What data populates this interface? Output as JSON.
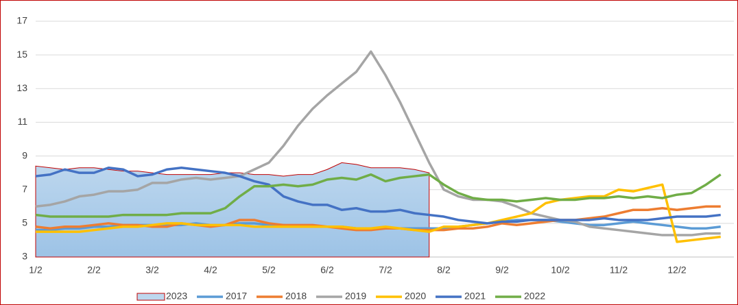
{
  "chart_data": {
    "type": "line",
    "categories": [
      "1/2",
      null,
      null,
      null,
      "2/2",
      null,
      null,
      null,
      "3/2",
      null,
      null,
      null,
      "4/2",
      null,
      null,
      null,
      "5/2",
      null,
      null,
      null,
      "6/2",
      null,
      null,
      null,
      "7/2",
      null,
      null,
      null,
      "8/2",
      null,
      null,
      null,
      "9/2",
      null,
      null,
      null,
      "10/2",
      null,
      null,
      null,
      "11/2",
      null,
      null,
      null,
      "12/2",
      null,
      null,
      null
    ],
    "ylim": [
      3,
      17
    ],
    "yticks": [
      3,
      5,
      7,
      9,
      11,
      13,
      15,
      17
    ],
    "grid": true,
    "series": [
      {
        "name": "2023",
        "style": "area",
        "color": "#c00000",
        "fill": "#bdd7ee",
        "values": [
          8.4,
          8.3,
          8.2,
          8.3,
          8.3,
          8.2,
          8.1,
          8.1,
          8.0,
          7.9,
          7.9,
          7.9,
          7.9,
          8.0,
          8.0,
          7.9,
          7.9,
          7.8,
          7.9,
          7.9,
          8.2,
          8.6,
          8.5,
          8.3,
          8.3,
          8.3,
          8.2,
          8.0,
          null,
          null,
          null,
          null,
          null,
          null,
          null,
          null,
          null,
          null,
          null,
          null,
          null,
          null,
          null,
          null,
          null,
          null,
          null,
          null
        ]
      },
      {
        "name": "2017",
        "color": "#5b9bd5",
        "values": [
          4.6,
          4.6,
          4.7,
          4.7,
          4.8,
          4.8,
          4.9,
          4.9,
          4.9,
          4.9,
          4.9,
          5.0,
          4.9,
          4.9,
          5.0,
          5.0,
          4.9,
          4.9,
          4.8,
          4.8,
          4.8,
          4.8,
          4.7,
          4.7,
          4.7,
          4.7,
          4.7,
          4.7,
          4.7,
          4.8,
          4.9,
          5.0,
          5.1,
          5.2,
          5.2,
          5.2,
          5.1,
          5.0,
          4.9,
          4.9,
          5.0,
          5.1,
          5.0,
          4.9,
          4.8,
          4.7,
          4.7,
          4.8
        ]
      },
      {
        "name": "2018",
        "color": "#ed7d31",
        "values": [
          4.8,
          4.7,
          4.8,
          4.8,
          4.9,
          5.0,
          4.9,
          4.9,
          4.8,
          4.8,
          5.0,
          4.9,
          4.8,
          4.9,
          5.2,
          5.2,
          5.0,
          4.9,
          4.9,
          4.9,
          4.8,
          4.7,
          4.6,
          4.6,
          4.7,
          4.7,
          4.6,
          4.6,
          4.6,
          4.7,
          4.7,
          4.8,
          5.0,
          4.9,
          5.0,
          5.1,
          5.2,
          5.2,
          5.3,
          5.4,
          5.6,
          5.8,
          5.8,
          5.9,
          5.8,
          5.9,
          6.0,
          6.0
        ]
      },
      {
        "name": "2019",
        "color": "#a5a5a5",
        "values": [
          6.0,
          6.1,
          6.3,
          6.6,
          6.7,
          6.9,
          6.9,
          7.0,
          7.4,
          7.4,
          7.6,
          7.7,
          7.6,
          7.7,
          7.8,
          8.2,
          8.6,
          9.6,
          10.8,
          11.8,
          12.6,
          13.3,
          14.0,
          15.2,
          13.8,
          12.2,
          10.4,
          8.6,
          7.0,
          6.6,
          6.4,
          6.4,
          6.3,
          6.0,
          5.6,
          5.4,
          5.2,
          5.1,
          4.8,
          4.7,
          4.6,
          4.5,
          4.4,
          4.3,
          4.3,
          4.3,
          4.4,
          4.4
        ]
      },
      {
        "name": "2020",
        "color": "#ffc000",
        "values": [
          4.5,
          4.5,
          4.5,
          4.5,
          4.6,
          4.7,
          4.8,
          4.8,
          4.9,
          5.0,
          5.0,
          4.9,
          4.9,
          4.9,
          4.9,
          4.8,
          4.8,
          4.8,
          4.8,
          4.8,
          4.8,
          4.8,
          4.7,
          4.7,
          4.8,
          4.7,
          4.6,
          4.5,
          4.8,
          4.8,
          4.9,
          5.0,
          5.2,
          5.4,
          5.6,
          6.2,
          6.4,
          6.5,
          6.6,
          6.6,
          7.0,
          6.9,
          7.1,
          7.3,
          3.9,
          4.0,
          4.1,
          4.2
        ]
      },
      {
        "name": "2021",
        "color": "#4472c4",
        "values": [
          7.8,
          7.9,
          8.2,
          8.0,
          8.0,
          8.3,
          8.2,
          7.8,
          7.9,
          8.2,
          8.3,
          8.2,
          8.1,
          8.0,
          7.8,
          7.5,
          7.3,
          6.6,
          6.3,
          6.1,
          6.1,
          5.8,
          5.9,
          5.7,
          5.7,
          5.8,
          5.6,
          5.5,
          5.4,
          5.2,
          5.1,
          5.0,
          5.1,
          5.1,
          5.2,
          5.2,
          5.2,
          5.2,
          5.2,
          5.3,
          5.2,
          5.2,
          5.2,
          5.3,
          5.4,
          5.4,
          5.4,
          5.5
        ]
      },
      {
        "name": "2022",
        "color": "#70ad47",
        "values": [
          5.5,
          5.4,
          5.4,
          5.4,
          5.4,
          5.4,
          5.5,
          5.5,
          5.5,
          5.5,
          5.6,
          5.6,
          5.6,
          5.9,
          6.6,
          7.2,
          7.2,
          7.3,
          7.2,
          7.3,
          7.6,
          7.7,
          7.6,
          7.9,
          7.5,
          7.7,
          7.8,
          7.9,
          7.3,
          6.8,
          6.5,
          6.4,
          6.4,
          6.3,
          6.4,
          6.5,
          6.4,
          6.4,
          6.5,
          6.5,
          6.6,
          6.5,
          6.6,
          6.5,
          6.7,
          6.8,
          7.3,
          7.9
        ]
      }
    ]
  }
}
